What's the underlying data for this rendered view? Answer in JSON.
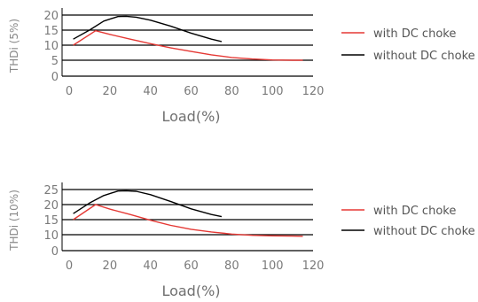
{
  "chart_data": [
    {
      "type": "line",
      "xlabel": "Load(%)",
      "ylabel": "THDi (5%)",
      "xlim": [
        0,
        120
      ],
      "ylim": [
        0,
        20
      ],
      "xticks": [
        0,
        20,
        40,
        60,
        80,
        100,
        120
      ],
      "yticks": [
        0,
        5,
        10,
        15,
        20
      ],
      "grid": "horizontal",
      "legend": "right",
      "series": [
        {
          "name": "with DC choke",
          "color": "#e53935",
          "x": [
            2,
            13,
            20,
            30,
            40,
            50,
            60,
            70,
            80,
            90,
            100,
            110,
            115
          ],
          "y": [
            10,
            14.8,
            13.6,
            12,
            10.5,
            9.1,
            7.9,
            6.8,
            5.9,
            5.4,
            5.1,
            5,
            5
          ]
        },
        {
          "name": "without DC choke",
          "color": "#000000",
          "x": [
            2,
            10,
            17,
            24,
            28,
            33,
            40,
            50,
            60,
            70,
            75
          ],
          "y": [
            12,
            15,
            18,
            19.5,
            19.6,
            19.3,
            18.3,
            16.3,
            14,
            12,
            11.2
          ]
        }
      ]
    },
    {
      "type": "line",
      "xlabel": "Load(%)",
      "ylabel": "THDi (10%)",
      "xlim": [
        0,
        120
      ],
      "ylim": [
        0,
        25
      ],
      "xticks": [
        0,
        20,
        40,
        60,
        80,
        100,
        120
      ],
      "yticks": [
        0,
        10,
        15,
        20,
        25
      ],
      "grid": "horizontal",
      "legend": "right",
      "series": [
        {
          "name": "with DC choke",
          "color": "#e53935",
          "x": [
            2,
            13,
            20,
            30,
            40,
            50,
            60,
            70,
            80,
            90,
            100,
            110,
            115
          ],
          "y": [
            15,
            20,
            18.5,
            16.7,
            14.8,
            13.1,
            11.8,
            10.9,
            10.2,
            9.6,
            9.3,
            9.1,
            9
          ]
        },
        {
          "name": "without DC choke",
          "color": "#000000",
          "x": [
            2,
            10,
            17,
            24,
            28,
            33,
            40,
            50,
            60,
            70,
            75
          ],
          "y": [
            17,
            20.5,
            23,
            24.5,
            24.6,
            24.4,
            23.3,
            21,
            18.6,
            16.7,
            16
          ]
        }
      ]
    }
  ]
}
